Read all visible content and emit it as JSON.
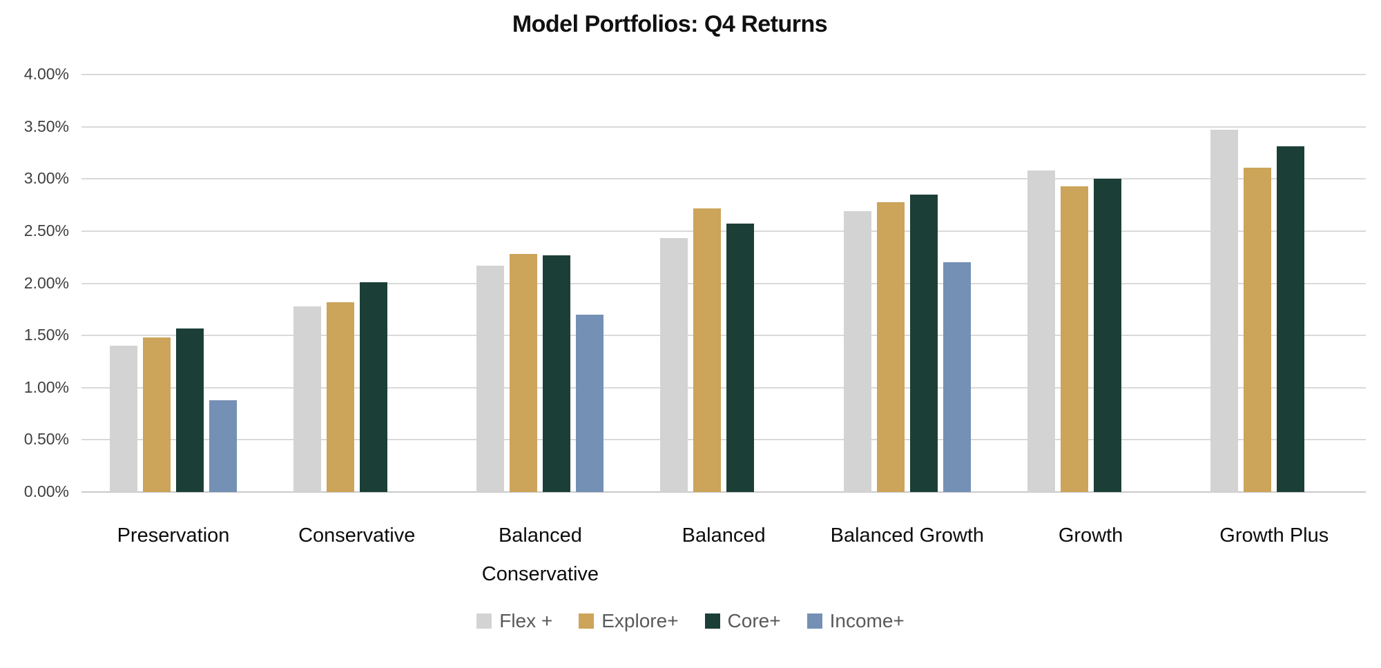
{
  "chart_data": {
    "type": "bar",
    "title": "Model Portfolios: Q4 Returns",
    "categories": [
      "Preservation",
      "Conservative",
      "Balanced Conservative",
      "Balanced",
      "Balanced Growth",
      "Growth",
      "Growth Plus"
    ],
    "series": [
      {
        "name": "Flex +",
        "color": "#D3D3D3",
        "values": [
          1.4,
          1.78,
          2.17,
          2.43,
          2.69,
          3.08,
          3.47
        ]
      },
      {
        "name": "Explore+",
        "color": "#CCA45A",
        "values": [
          1.48,
          1.82,
          2.28,
          2.72,
          2.78,
          2.93,
          3.11
        ]
      },
      {
        "name": "Core+",
        "color": "#1B3F37",
        "values": [
          1.57,
          2.01,
          2.27,
          2.57,
          2.85,
          3.0,
          3.31
        ]
      },
      {
        "name": "Income+",
        "color": "#7590B5",
        "values": [
          0.88,
          null,
          1.7,
          null,
          2.2,
          null,
          null
        ]
      }
    ],
    "xlabel": "",
    "ylabel": "",
    "ylim": [
      0,
      4
    ],
    "ytick_step": 0.5,
    "yticks": [
      "0.00%",
      "0.50%",
      "1.00%",
      "1.50%",
      "2.00%",
      "2.50%",
      "3.00%",
      "3.50%",
      "4.00%"
    ],
    "grid": true,
    "legend_position": "bottom"
  },
  "colors": {
    "gridline": "#D9D9D9",
    "axis_line": "#C9C9C9",
    "tick_label_color": "#3F3F3F",
    "category_label_color": "#0D0D0D",
    "legend_text_color": "#595959",
    "background": "#FFFFFF"
  }
}
